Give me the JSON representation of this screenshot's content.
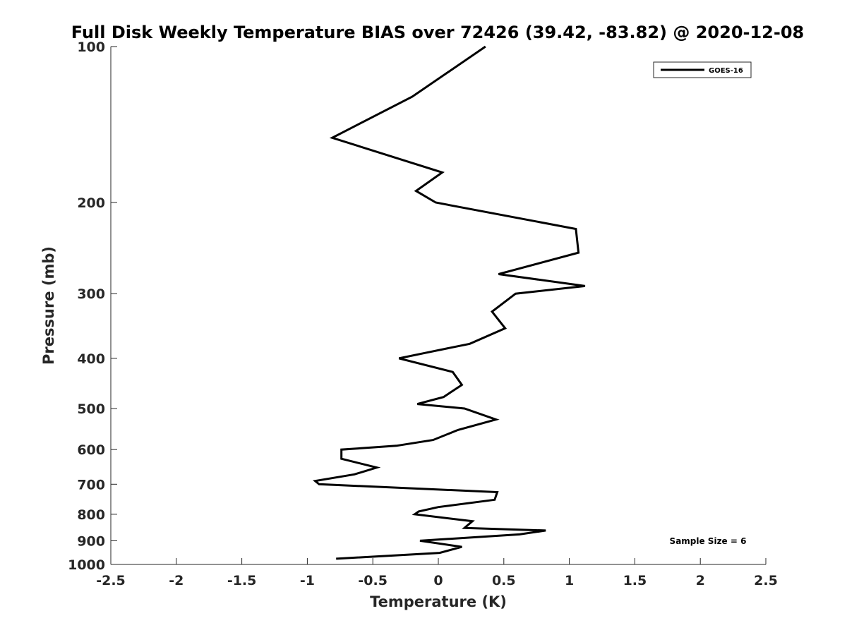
{
  "chart_data": {
    "type": "line",
    "title": "Full Disk Weekly Temperature BIAS over 72426 (39.42, -83.82) @ 2020-12-08",
    "xlabel": "Temperature (K)",
    "ylabel": "Pressure (mb)",
    "xlim": [
      -2.5,
      2.5
    ],
    "ylim": [
      100,
      1000
    ],
    "y_scale": "log",
    "y_reversed": true,
    "grid": false,
    "x_ticks": [
      -2.5,
      -2,
      -1.5,
      -1,
      -0.5,
      0,
      0.5,
      1,
      1.5,
      2,
      2.5
    ],
    "x_tick_labels": [
      "-2.5",
      "-2",
      "-1.5",
      "-1",
      "-0.5",
      "0",
      "0.5",
      "1",
      "1.5",
      "2",
      "2.5"
    ],
    "y_ticks": [
      100,
      200,
      300,
      400,
      500,
      600,
      700,
      800,
      900,
      1000
    ],
    "y_tick_labels": [
      "100",
      "200",
      "300",
      "400",
      "500",
      "600",
      "700",
      "800",
      "900",
      "1000"
    ],
    "legend": {
      "position": "top-right",
      "entries": [
        "GOES-16"
      ]
    },
    "annotation": "Sample Size = 6",
    "series": [
      {
        "name": "GOES-16",
        "color": "#000000",
        "points": [
          [
            0.36,
            100
          ],
          [
            -0.2,
            125
          ],
          [
            -0.81,
            150
          ],
          [
            0.03,
            175
          ],
          [
            -0.17,
            190
          ],
          [
            -0.02,
            200
          ],
          [
            1.05,
            225
          ],
          [
            1.07,
            250
          ],
          [
            0.46,
            275
          ],
          [
            1.12,
            290
          ],
          [
            0.59,
            300
          ],
          [
            0.41,
            325
          ],
          [
            0.51,
            350
          ],
          [
            0.24,
            375
          ],
          [
            -0.09,
            390
          ],
          [
            -0.3,
            400
          ],
          [
            0.11,
            425
          ],
          [
            0.18,
            450
          ],
          [
            0.04,
            475
          ],
          [
            -0.16,
            490
          ],
          [
            0.2,
            500
          ],
          [
            0.44,
            525
          ],
          [
            0.15,
            550
          ],
          [
            -0.04,
            575
          ],
          [
            -0.32,
            590
          ],
          [
            -0.74,
            600
          ],
          [
            -0.74,
            625
          ],
          [
            -0.47,
            650
          ],
          [
            -0.64,
            670
          ],
          [
            -0.94,
            690
          ],
          [
            -0.91,
            700
          ],
          [
            0.45,
            725
          ],
          [
            0.43,
            750
          ],
          [
            0.0,
            775
          ],
          [
            -0.15,
            790
          ],
          [
            -0.18,
            800
          ],
          [
            0.26,
            825
          ],
          [
            0.2,
            850
          ],
          [
            0.82,
            860
          ],
          [
            0.62,
            875
          ],
          [
            -0.14,
            900
          ],
          [
            0.18,
            925
          ],
          [
            0.01,
            950
          ],
          [
            -0.78,
            975
          ]
        ]
      }
    ]
  }
}
